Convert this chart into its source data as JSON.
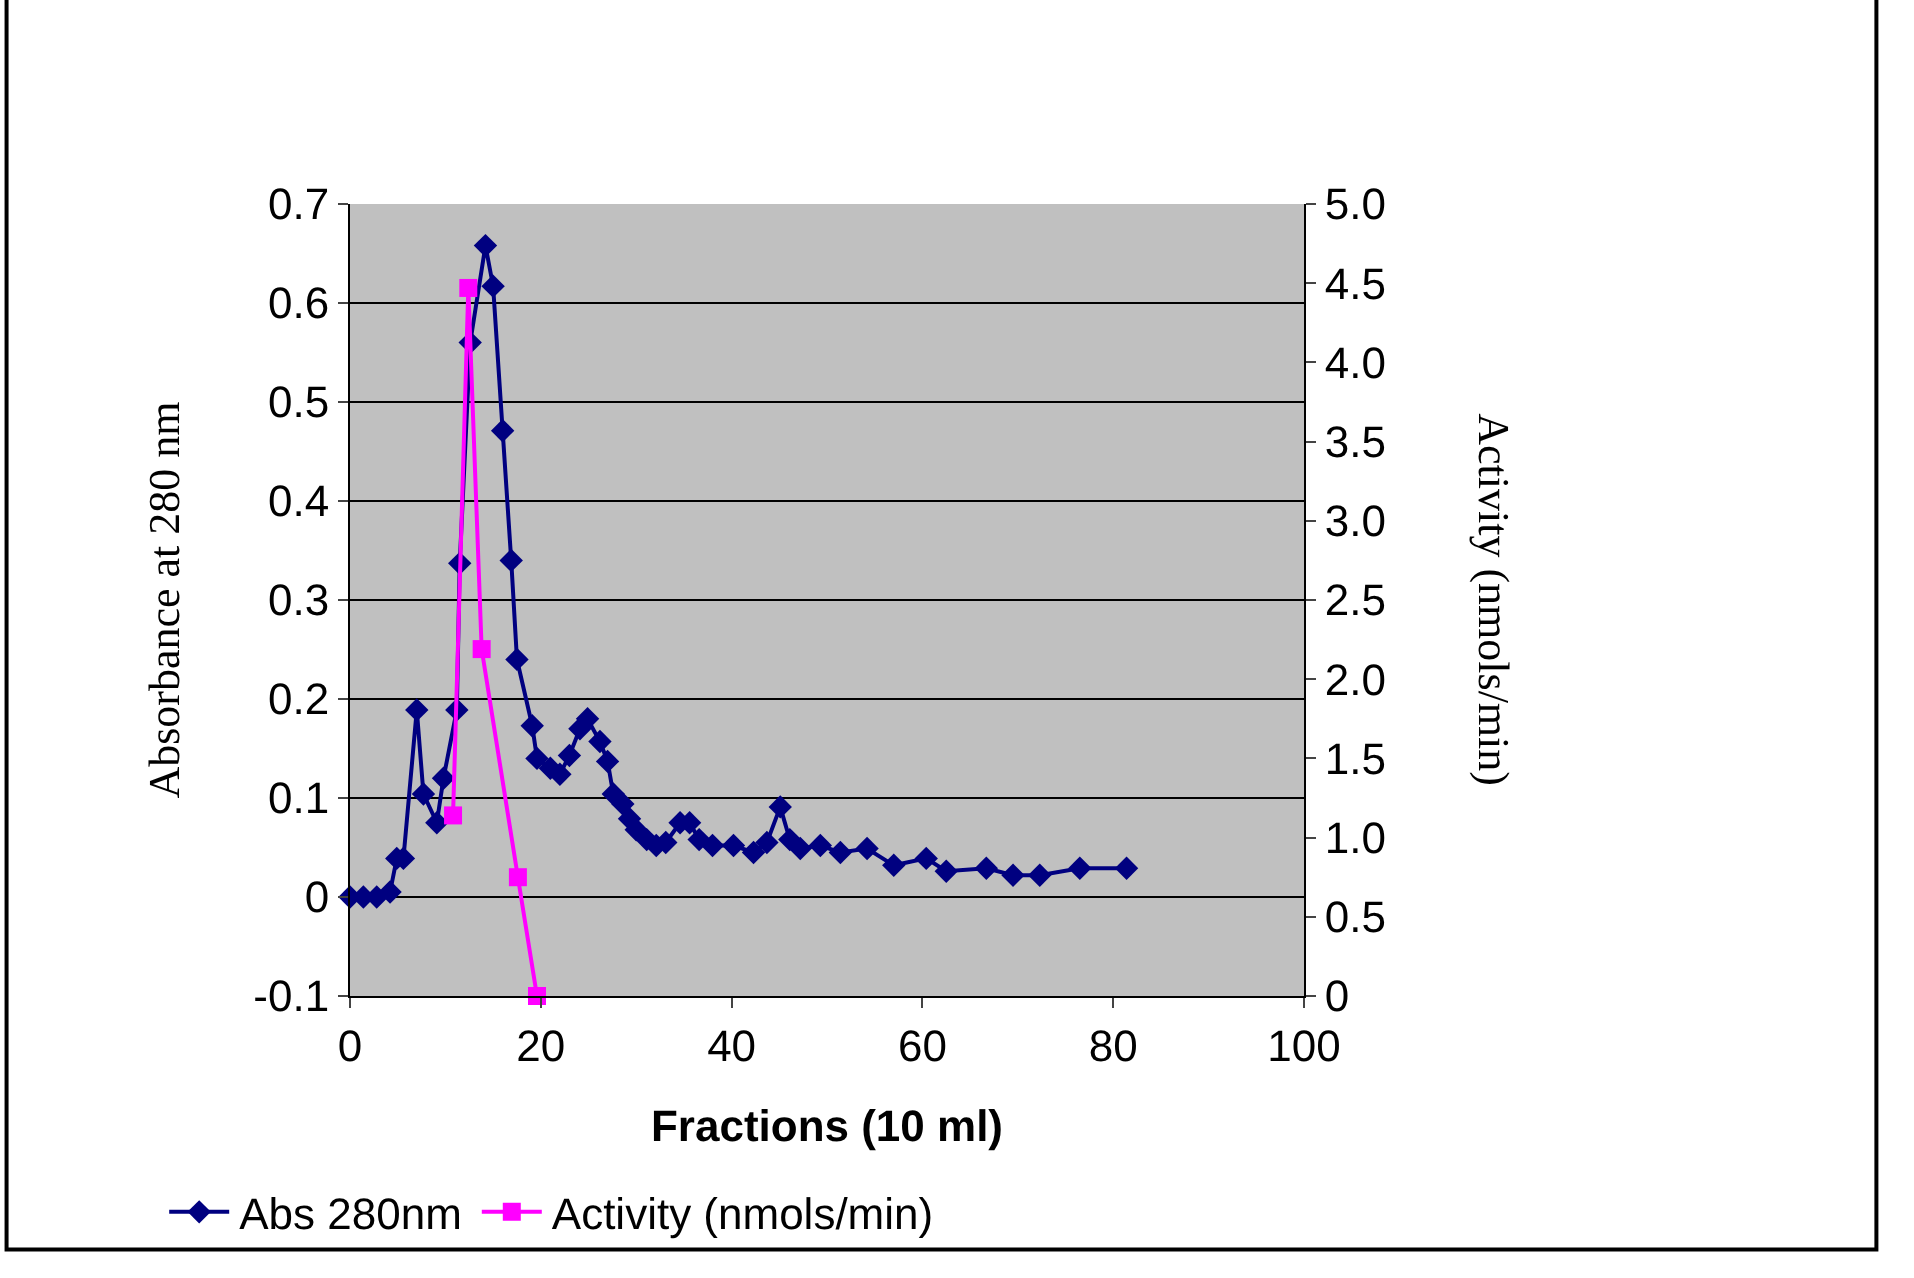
{
  "chart_data": {
    "type": "line",
    "xlabel": "Fractions (10 ml)",
    "ylabel": "Absorbance at 280 nm",
    "y2label": "Activity (nmols/min)",
    "series": [
      {
        "name": "Abs 280nm",
        "color": "#000080",
        "marker": "diamond",
        "x": [
          0,
          1.4,
          2.8,
          4.2,
          4.9,
          5.6,
          7.0,
          7.7,
          9.1,
          9.8,
          11.2,
          11.5,
          12.6,
          14.2,
          15.0,
          16.0,
          16.9,
          17.5,
          19.1,
          19.6,
          21.0,
          22.0,
          23.0,
          24.1,
          24.9,
          26.2,
          27.0,
          27.6,
          28.6,
          29.3,
          30.0,
          31.1,
          32.1,
          33.1,
          34.6,
          35.6,
          36.6,
          38.0,
          40.2,
          42.3,
          43.7,
          45.1,
          46.1,
          47.2,
          49.3,
          51.4,
          54.2,
          57.0,
          60.4,
          62.5,
          66.7,
          69.5,
          72.3,
          76.5,
          81.4
        ],
        "values": [
          0,
          0,
          0,
          0.005,
          0.039,
          0.039,
          0.189,
          0.104,
          0.075,
          0.12,
          0.189,
          0.337,
          0.56,
          0.658,
          0.617,
          0.471,
          0.34,
          0.24,
          0.173,
          0.14,
          0.13,
          0.124,
          0.143,
          0.17,
          0.18,
          0.157,
          0.137,
          0.104,
          0.094,
          0.079,
          0.068,
          0.058,
          0.052,
          0.055,
          0.075,
          0.075,
          0.058,
          0.052,
          0.052,
          0.045,
          0.055,
          0.091,
          0.058,
          0.049,
          0.052,
          0.045,
          0.049,
          0.032,
          0.039,
          0.026,
          0.029,
          0.022,
          0.022,
          0.029,
          0.029
        ]
      },
      {
        "name": "Activity (nmols/min)",
        "color": "#ff00ff",
        "marker": "square",
        "axis": "y2",
        "x": [
          10.8,
          12.4,
          13.8,
          17.6,
          19.6
        ],
        "values": [
          1.14,
          4.47,
          2.19,
          0.75,
          0
        ]
      }
    ],
    "xlim": [
      0,
      100
    ],
    "xticks": [
      0,
      20,
      40,
      60,
      80,
      100
    ],
    "ylim": [
      -0.1,
      0.7
    ],
    "yticks": [
      -0.1,
      0,
      0.1,
      0.2,
      0.3,
      0.4,
      0.5,
      0.6,
      0.7
    ],
    "y2lim": [
      0,
      5
    ],
    "y2ticks": [
      0,
      {
        "value": 0.5,
        "label": "0.5"
      },
      {
        "value": 1,
        "label": "1.0"
      },
      {
        "value": 1.5,
        "label": "1.5"
      },
      {
        "value": 2,
        "label": "2.0"
      },
      {
        "value": 2.5,
        "label": "2.5"
      },
      {
        "value": 3,
        "label": "3.0"
      },
      {
        "value": 3.5,
        "label": "3.5"
      },
      {
        "value": 4,
        "label": "4.0"
      },
      {
        "value": 4.5,
        "label": "4.5"
      },
      {
        "value": 5,
        "label": "5.0"
      }
    ],
    "grid": "y",
    "legend": "bottom",
    "line_style": "solid"
  }
}
